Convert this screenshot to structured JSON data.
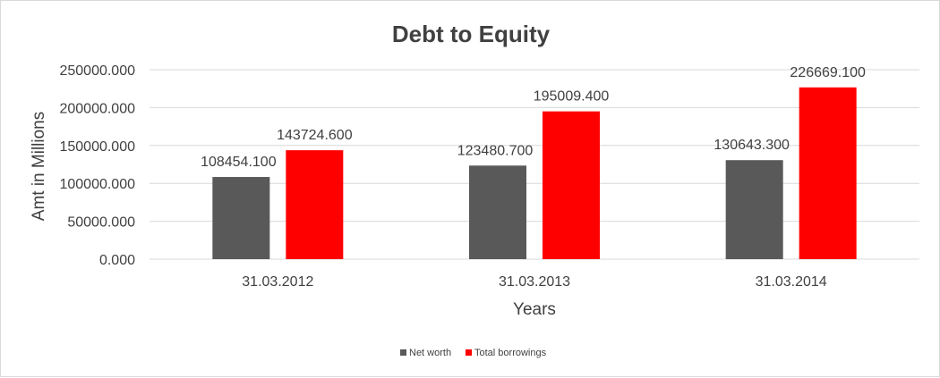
{
  "chart_data": {
    "type": "bar",
    "title": "Debt to Equity",
    "xlabel": "Years",
    "ylabel": "Amt in Millions",
    "categories": [
      "31.03.2012",
      "31.03.2013",
      "31.03.2014"
    ],
    "series": [
      {
        "name": "Net worth",
        "color": "#595959",
        "values": [
          108454.1,
          123480.7,
          130643.3
        ],
        "labels": [
          "108454.100",
          "123480.700",
          "130643.300"
        ]
      },
      {
        "name": "Total borrowings",
        "color": "#ff0000",
        "values": [
          143724.6,
          195009.4,
          226669.1
        ],
        "labels": [
          "143724.600",
          "195009.400",
          "226669.100"
        ]
      }
    ],
    "ylim": [
      0,
      250000
    ],
    "yticks": [
      "0.000",
      "50000.000",
      "100000.000",
      "150000.000",
      "200000.000",
      "250000.000"
    ],
    "ytick_values": [
      0,
      50000,
      100000,
      150000,
      200000,
      250000
    ],
    "grid": true,
    "legend_position": "bottom"
  }
}
